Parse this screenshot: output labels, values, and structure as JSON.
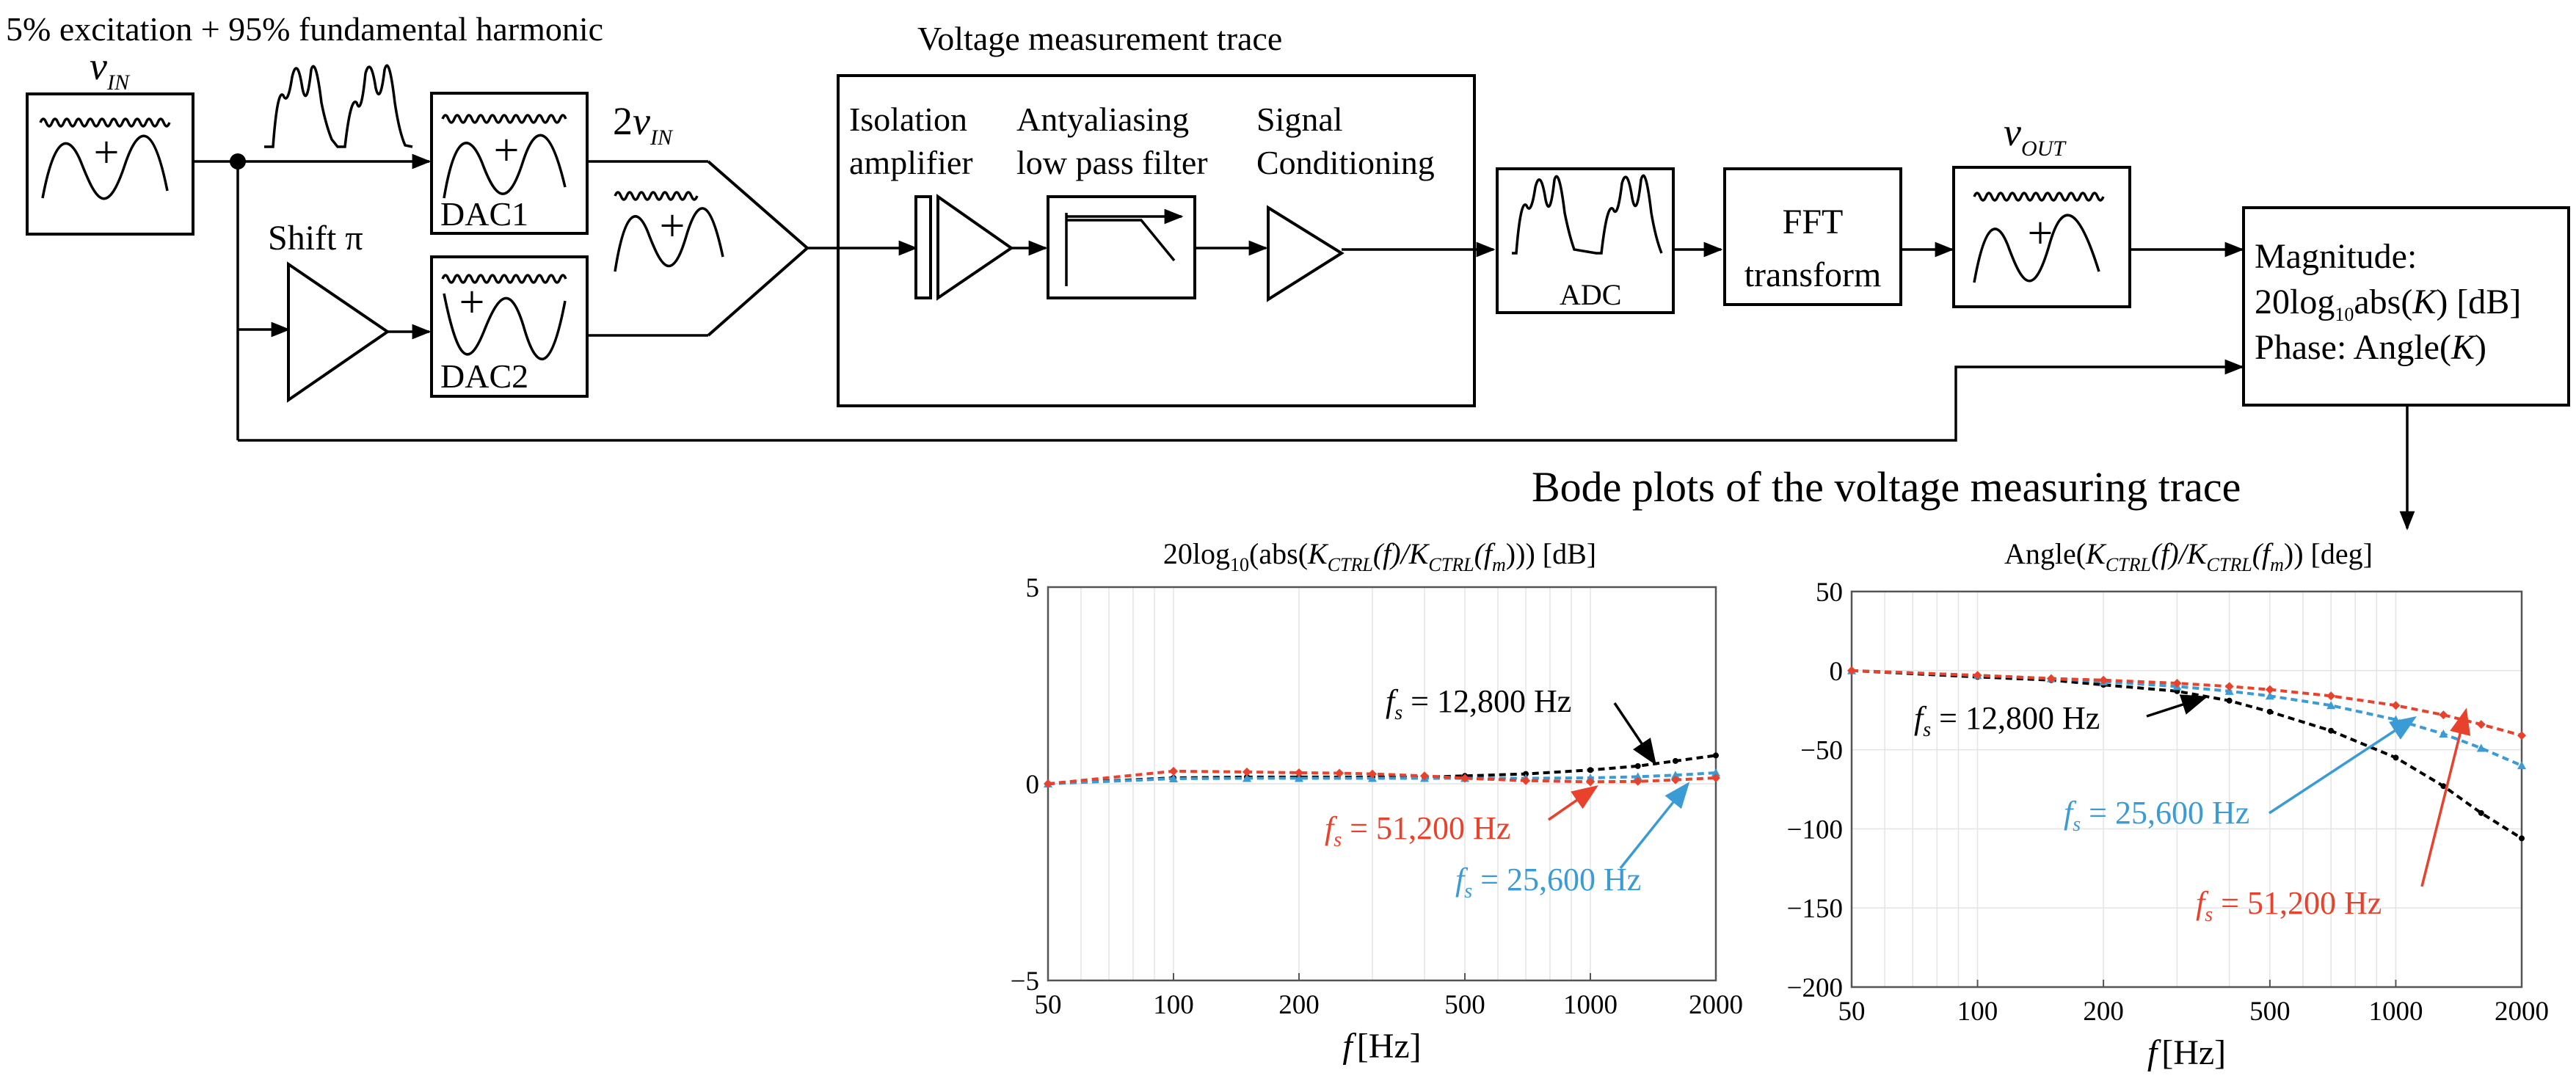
{
  "diagram": {
    "title_signal": "5% excitation + 95% fundamental harmonic",
    "vin_label": "v",
    "vin_sub": "IN",
    "two_vin_prefix": "2",
    "two_vin_v": "v",
    "two_vin_sub": "IN",
    "shift_label": "Shift π",
    "dac1_label": "DAC1",
    "dac2_label": "DAC2",
    "trace_title": "Voltage measurement trace",
    "isolation_l1": "Isolation",
    "isolation_l2": "amplifier",
    "antialias_l1": "Antyaliasing",
    "antialias_l2": "low pass filter",
    "signal_l1": "Signal",
    "signal_l2": "Conditioning",
    "adc_label": "ADC",
    "fft_l1": "FFT",
    "fft_l2": "transform",
    "vout_v": "v",
    "vout_sub": "OUT",
    "out_l1": "Magnitude:",
    "out_l2a": "20log",
    "out_l2sub": "10",
    "out_l2b": "abs(",
    "out_l2k": "K",
    "out_l2c": ") [dB]",
    "out_l3a": "Phase: Angle(",
    "out_l3k": "K",
    "out_l3c": ")",
    "bode_title": "Bode plots of the voltage measuring trace",
    "plus": "+"
  },
  "chart_data": [
    {
      "type": "line",
      "title": "20log10(abs(KCTRL(f)/KCTRL(fm))) [dB]",
      "title_parts": {
        "a": "20log",
        "sub10": "10",
        "b": "(abs(",
        "k1": "K",
        "ctrl1": "CTRL",
        "f1": "(f)/",
        "k2": "K",
        "ctrl2": "CTRL",
        "f2": "(f",
        "m": "m",
        "c": "))) [dB]"
      },
      "xlabel": "f [Hz]",
      "xlabel_f": "f",
      "xlabel_unit": "[Hz]",
      "xscale": "log",
      "xlim": [
        50,
        2000
      ],
      "ylim": [
        -5,
        5
      ],
      "xticks": [
        50,
        100,
        200,
        500,
        1000,
        2000
      ],
      "xtick_labels": [
        "50",
        "100",
        "200",
        "500",
        "1000",
        "2000"
      ],
      "yticks": [
        -5,
        0,
        5
      ],
      "ytick_labels": [
        "−5",
        "0",
        "5"
      ],
      "series": [
        {
          "name": "fs = 12,800 Hz",
          "color": "#000000",
          "marker": "dot",
          "x": [
            50,
            100,
            150,
            200,
            300,
            400,
            500,
            700,
            1000,
            1300,
            1600,
            2000
          ],
          "y": [
            0,
            0.15,
            0.17,
            0.17,
            0.17,
            0.17,
            0.2,
            0.25,
            0.35,
            0.45,
            0.58,
            0.72
          ]
        },
        {
          "name": "fs = 25,600 Hz",
          "color": "#3a9bd5",
          "marker": "triangle",
          "x": [
            50,
            100,
            150,
            200,
            300,
            400,
            500,
            700,
            1000,
            1300,
            1600,
            2000
          ],
          "y": [
            0,
            0.13,
            0.14,
            0.14,
            0.14,
            0.14,
            0.14,
            0.14,
            0.15,
            0.18,
            0.22,
            0.28
          ]
        },
        {
          "name": "fs = 51,200 Hz",
          "color": "#e8412c",
          "marker": "diamond",
          "x": [
            50,
            100,
            150,
            200,
            250,
            300,
            400,
            500,
            700,
            1000,
            1300,
            1600,
            2000
          ],
          "y": [
            0,
            0.32,
            0.3,
            0.28,
            0.27,
            0.25,
            0.2,
            0.14,
            0.08,
            0.05,
            0.06,
            0.1,
            0.15
          ]
        }
      ],
      "annotations": [
        {
          "series": 0,
          "f": "f",
          "s": "s",
          "text": " = 12,800 Hz"
        },
        {
          "series": 2,
          "f": "f",
          "s": "s",
          "text": " = 51,200 Hz"
        },
        {
          "series": 1,
          "f": "f",
          "s": "s",
          "text": " = 25,600 Hz"
        }
      ]
    },
    {
      "type": "line",
      "title": "Angle(KCTRL(f)/KCTRL(fm)) [deg]",
      "title_parts": {
        "a": "Angle(",
        "k1": "K",
        "ctrl1": "CTRL",
        "f1": "(f)/",
        "k2": "K",
        "ctrl2": "CTRL",
        "f2": "(f",
        "m": "m",
        "c": ")) [deg]"
      },
      "xlabel": "f [Hz]",
      "xlabel_f": "f",
      "xlabel_unit": "[Hz]",
      "xscale": "log",
      "xlim": [
        50,
        2000
      ],
      "ylim": [
        -200,
        50
      ],
      "xticks": [
        50,
        100,
        200,
        500,
        1000,
        2000
      ],
      "xtick_labels": [
        "50",
        "100",
        "200",
        "500",
        "1000",
        "2000"
      ],
      "yticks": [
        -200,
        -150,
        -100,
        -50,
        0,
        50
      ],
      "ytick_labels": [
        "−200",
        "−150",
        "−100",
        "−50",
        "0",
        "50"
      ],
      "series": [
        {
          "name": "fs = 12,800 Hz",
          "color": "#000000",
          "marker": "dot",
          "x": [
            50,
            100,
            150,
            200,
            300,
            400,
            500,
            700,
            1000,
            1300,
            1600,
            2000
          ],
          "y": [
            0,
            -4,
            -6,
            -9,
            -13,
            -19,
            -26,
            -38,
            -55,
            -73,
            -90,
            -106
          ]
        },
        {
          "name": "fs = 25,600 Hz",
          "color": "#3a9bd5",
          "marker": "triangle",
          "x": [
            50,
            100,
            150,
            200,
            300,
            400,
            500,
            700,
            1000,
            1300,
            1600,
            2000
          ],
          "y": [
            0,
            -3,
            -5,
            -7,
            -10,
            -13,
            -16,
            -22,
            -31,
            -40,
            -49,
            -60
          ]
        },
        {
          "name": "fs = 51,200 Hz",
          "color": "#e8412c",
          "marker": "diamond",
          "x": [
            50,
            100,
            150,
            200,
            300,
            400,
            500,
            700,
            1000,
            1300,
            1600,
            2000
          ],
          "y": [
            0,
            -3,
            -5,
            -6,
            -8,
            -10,
            -12,
            -16,
            -22,
            -28,
            -34,
            -41
          ]
        }
      ],
      "annotations": [
        {
          "series": 0,
          "f": "f",
          "s": "s",
          "text": " = 12,800 Hz"
        },
        {
          "series": 1,
          "f": "f",
          "s": "s",
          "text": " = 25,600 Hz"
        },
        {
          "series": 2,
          "f": "f",
          "s": "s",
          "text": " = 51,200 Hz"
        }
      ]
    }
  ]
}
